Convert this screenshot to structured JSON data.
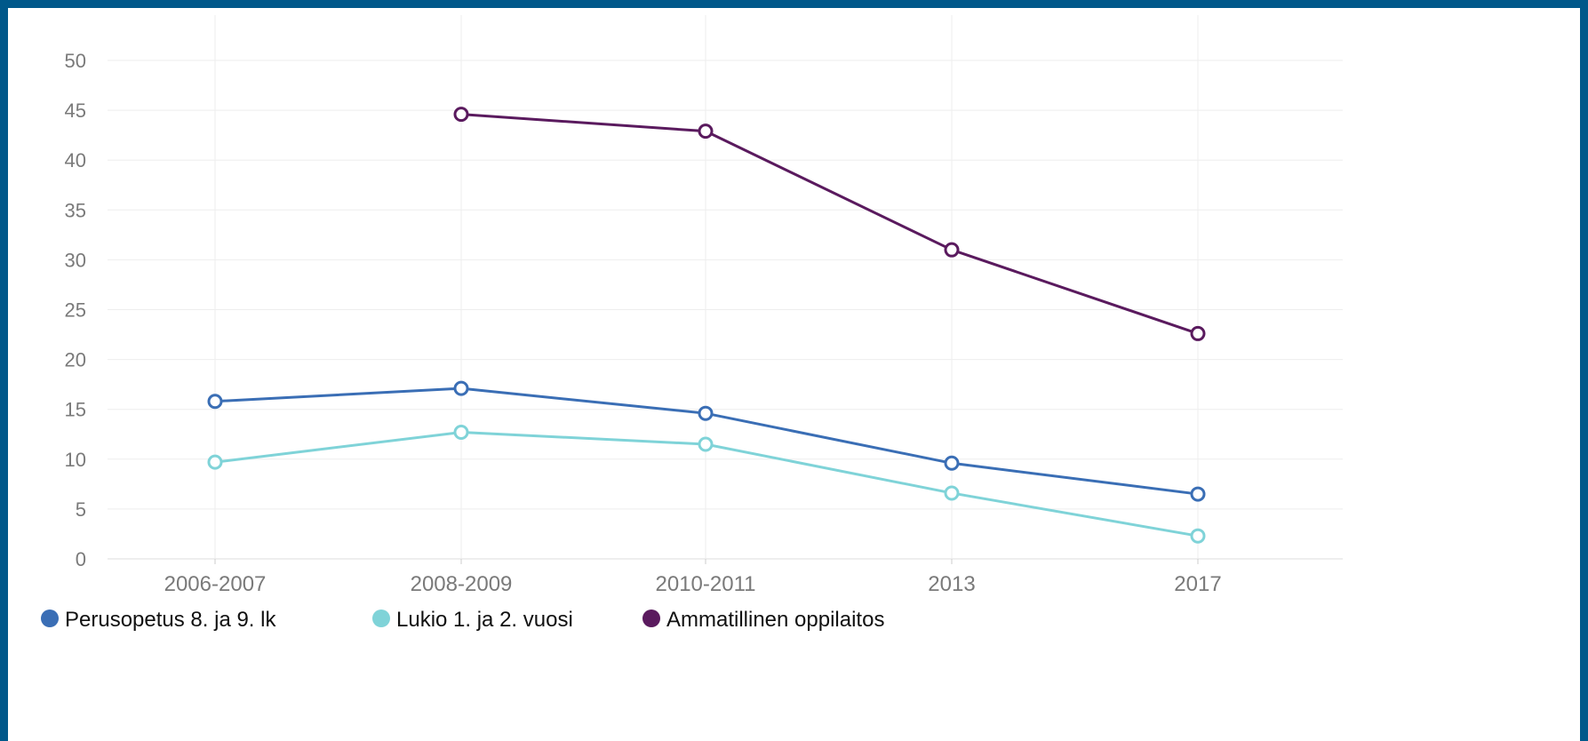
{
  "chart_data": {
    "type": "line",
    "title": "",
    "xlabel": "",
    "ylabel": "",
    "categories": [
      "2006-2007",
      "2008-2009",
      "2010-2011",
      "2013",
      "2017"
    ],
    "y_ticks": [
      0,
      5,
      10,
      15,
      20,
      25,
      30,
      35,
      40,
      45,
      50
    ],
    "ylim": [
      0,
      50
    ],
    "grid": true,
    "legend_position": "bottom-left",
    "series": [
      {
        "name": "Perusopetus 8. ja 9. lk",
        "color": "#3a6eb5",
        "values": [
          15.8,
          17.1,
          14.6,
          9.6,
          6.5
        ]
      },
      {
        "name": "Lukio 1. ja 2. vuosi",
        "color": "#7fd3d8",
        "values": [
          9.7,
          12.7,
          11.5,
          6.6,
          2.3
        ]
      },
      {
        "name": "Ammatillinen oppilaitos",
        "color": "#5a1a5e",
        "values": [
          null,
          44.6,
          42.9,
          31.0,
          22.6
        ]
      }
    ]
  }
}
